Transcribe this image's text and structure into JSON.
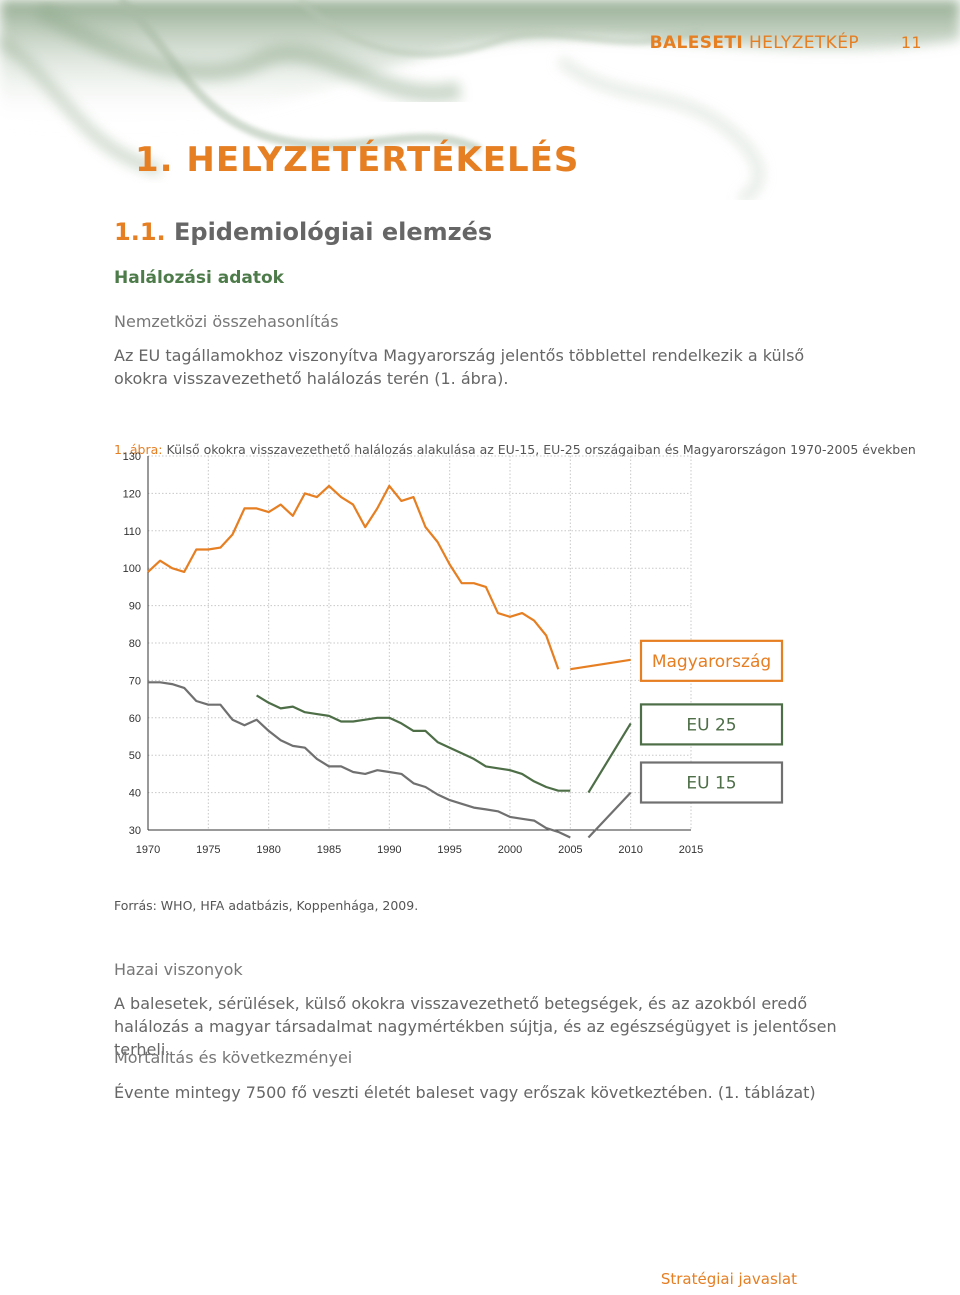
{
  "header": {
    "part1": "BALESETI",
    "part2": "HELYZETKÉP",
    "page_number": "11"
  },
  "chapter_title": "1. HELYZETÉRTÉKELÉS",
  "section": {
    "number": "1.1.",
    "title": "Epidemiológiai elemzés"
  },
  "subsection": "Halálozási adatok",
  "intl_heading": "Nemzetközi összehasonlítás",
  "intl_paragraph": "Az EU tagállamokhoz viszonyítva Magyarország jelentős többlettel rendelkezik a külső okokra visszavezethető halálozás terén (1. ábra).",
  "figure_caption": {
    "number": "1. ábra:",
    "text": "Külső okokra visszavezethető halálozás alakulása az EU-15, EU-25 országaiban és Magyarországon 1970-2005 években"
  },
  "source": "Forrás: WHO, HFA adatbázis, Koppenhága, 2009.",
  "hazai_heading": "Hazai viszonyok",
  "hazai_paragraph": "A balesetek, sérülések, külső okokra visszavezethető betegségek, és az azokból eredő halálozás a magyar társadalmat nagymértékben sújtja, és az egészségügyet is jelentősen terheli.",
  "mortal_heading": "Mortalitás és következményei",
  "mortal_paragraph": "Évente mintegy 7500 fő veszti életét baleset vagy erőszak következtében. (1. táblázat)",
  "footer": "Stratégiai javaslat",
  "colors": {
    "orange": "#e67e22",
    "green_dark": "#4d6e47",
    "grey": "#707070"
  },
  "chart_data": {
    "type": "line",
    "ylim": [
      30,
      130
    ],
    "xlim": [
      1970,
      2015
    ],
    "yticks": [
      "130",
      "120",
      "110",
      "100",
      "90",
      "80",
      "70",
      "60",
      "50",
      "40",
      "30"
    ],
    "xticks": [
      "1970",
      "1975",
      "1980",
      "1985",
      "1990",
      "1995",
      "2000",
      "2005",
      "2010",
      "2015"
    ],
    "grid": true,
    "series": [
      {
        "name": "Magyarország",
        "color": "#e67e22",
        "x": [
          1970,
          1971,
          1972,
          1973,
          1974,
          1975,
          1976,
          1977,
          1978,
          1979,
          1980,
          1981,
          1982,
          1983,
          1984,
          1985,
          1986,
          1987,
          1988,
          1989,
          1990,
          1991,
          1992,
          1993,
          1994,
          1995,
          1996,
          1997,
          1998,
          1999,
          2000,
          2001,
          2002,
          2003,
          2004,
          2005
        ],
        "y": [
          99,
          102,
          100,
          99,
          105,
          105,
          105.5,
          109,
          116,
          116,
          115,
          117,
          114,
          120,
          119,
          122,
          119,
          117,
          111,
          116,
          122,
          118,
          119,
          111,
          107,
          101,
          96,
          96,
          95,
          88,
          87,
          88,
          86,
          82,
          73,
          null
        ]
      },
      {
        "name": "EU 25",
        "color": "#4d6e47",
        "x": [
          1979,
          1980,
          1981,
          1982,
          1983,
          1984,
          1985,
          1986,
          1987,
          1988,
          1989,
          1990,
          1991,
          1992,
          1993,
          1994,
          1995,
          1996,
          1997,
          1998,
          1999,
          2000,
          2001,
          2002,
          2003,
          2004,
          2005,
          2006
        ],
        "y": [
          66,
          64,
          62.5,
          63,
          61.5,
          61,
          60.5,
          59,
          59,
          59.5,
          60,
          60,
          58.5,
          56.5,
          56.5,
          53.5,
          52,
          50.5,
          49,
          47,
          46.5,
          46,
          45,
          43,
          41.5,
          40.5,
          40.5,
          null
        ]
      },
      {
        "name": "EU 15",
        "color": "#707070",
        "x": [
          1970,
          1971,
          1972,
          1973,
          1974,
          1975,
          1976,
          1977,
          1978,
          1979,
          1980,
          1981,
          1982,
          1983,
          1984,
          1985,
          1986,
          1987,
          1988,
          1989,
          1990,
          1991,
          1992,
          1993,
          1994,
          1995,
          1996,
          1997,
          1998,
          1999,
          2000,
          2001,
          2002,
          2003,
          2004,
          2005
        ],
        "y": [
          69.5,
          69.5,
          69,
          68,
          64.5,
          63.5,
          63.5,
          59.5,
          58,
          59.5,
          56.5,
          54,
          52.5,
          52,
          49,
          47,
          47,
          45.5,
          45,
          46,
          45.5,
          45,
          42.5,
          41.5,
          39.5,
          38,
          37,
          36,
          35.5,
          35,
          33.5,
          33,
          32.5,
          30.5,
          29.5,
          28
        ]
      }
    ],
    "projection_segments": [
      {
        "series": "Magyarország",
        "from": [
          2005,
          73
        ],
        "to": [
          2010,
          75.5
        ]
      },
      {
        "series": "EU 25",
        "from": [
          2006.5,
          40
        ],
        "to": [
          2010,
          58.5
        ]
      },
      {
        "series": "EU 15",
        "from": [
          2006.5,
          28
        ],
        "to": [
          2010,
          40
        ]
      }
    ],
    "legend_boxes": [
      {
        "label": "Magyarország",
        "color": "#e67e22"
      },
      {
        "label": "EU 25",
        "color": "#4d6e47"
      },
      {
        "label": "EU 15",
        "color": "#707070"
      }
    ]
  }
}
